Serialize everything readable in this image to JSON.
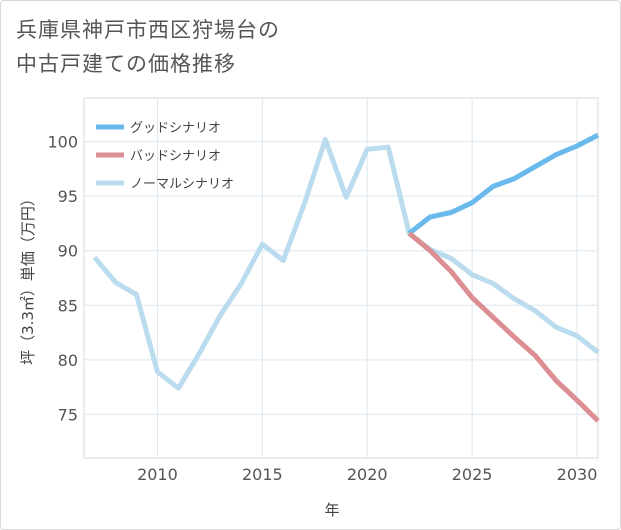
{
  "chart_data": {
    "type": "line",
    "title_line1": "兵庫県神戸市西区狩場台の",
    "title_line2": "中古戸建ての価格推移",
    "xlabel": "年",
    "ylabel": "坪（3.3㎡）単価（万円）",
    "xlim": [
      2006.5,
      2031
    ],
    "ylim": [
      71,
      104
    ],
    "x_ticks": [
      2010,
      2015,
      2020,
      2025,
      2030
    ],
    "y_ticks": [
      75,
      80,
      85,
      90,
      95,
      100
    ],
    "series": [
      {
        "name": "グッドシナリオ",
        "color": "#6ab9ec",
        "x": [
          2022,
          2023,
          2024,
          2025,
          2026,
          2027,
          2028,
          2029,
          2030,
          2031
        ],
        "y": [
          91.6,
          93.1,
          93.5,
          94.4,
          95.9,
          96.6,
          97.7,
          98.8,
          99.6,
          100.6
        ]
      },
      {
        "name": "バッドシナリオ",
        "color": "#dc8e92",
        "x": [
          2022,
          2023,
          2024,
          2025,
          2026,
          2027,
          2028,
          2029,
          2030,
          2031
        ],
        "y": [
          91.6,
          90.0,
          88.1,
          85.7,
          83.9,
          82.1,
          80.4,
          78.1,
          76.3,
          74.4
        ]
      },
      {
        "name": "ノーマルシナリオ",
        "color": "#badcee",
        "x": [
          2007,
          2008,
          2009,
          2010,
          2011,
          2012,
          2013,
          2014,
          2015,
          2016,
          2017,
          2018,
          2019,
          2020,
          2021,
          2022,
          2023,
          2024,
          2025,
          2026,
          2027,
          2028,
          2029,
          2030,
          2031
        ],
        "y": [
          89.4,
          87.1,
          86.0,
          78.9,
          77.4,
          80.6,
          84.1,
          87.0,
          90.6,
          89.1,
          94.3,
          100.2,
          94.9,
          99.3,
          99.5,
          91.6,
          90.1,
          89.3,
          87.8,
          87.0,
          85.6,
          84.5,
          83.0,
          82.2,
          80.7
        ]
      }
    ]
  }
}
